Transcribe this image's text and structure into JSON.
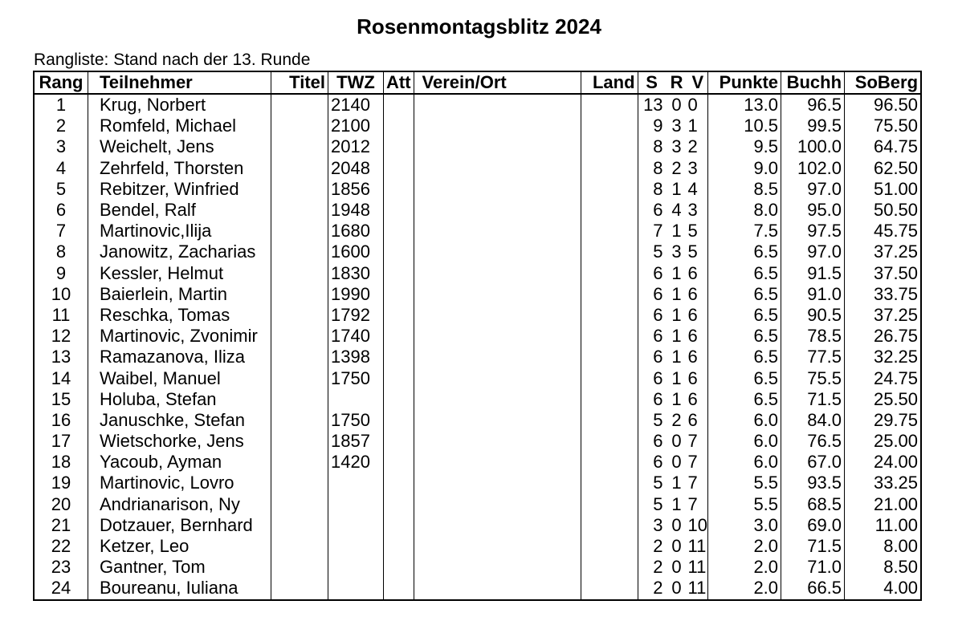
{
  "title": "Rosenmontagsblitz 2024",
  "subtitle": "Rangliste:  Stand nach der 13. Runde",
  "headers": {
    "rang": "Rang",
    "teilnehmer": "Teilnehmer",
    "titel": "Titel",
    "twz": "TWZ",
    "att": "Att",
    "verein": "Verein/Ort",
    "land": "Land",
    "s": "S",
    "r": "R",
    "v": "V",
    "punkte": "Punkte",
    "buchh": "Buchh",
    "soberg": "SoBerg"
  },
  "rows": [
    {
      "rang": "1",
      "name": "Krug, Norbert",
      "titel": "",
      "twz": "2140",
      "att": "",
      "verein": "",
      "land": "",
      "s": "13",
      "r": "0",
      "v": "0",
      "punkte": "13.0",
      "buchh": "96.5",
      "soberg": "96.50"
    },
    {
      "rang": "2",
      "name": "Romfeld, Michael",
      "titel": "",
      "twz": "2100",
      "att": "",
      "verein": "",
      "land": "",
      "s": "9",
      "r": "3",
      "v": "1",
      "punkte": "10.5",
      "buchh": "99.5",
      "soberg": "75.50"
    },
    {
      "rang": "3",
      "name": "Weichelt, Jens",
      "titel": "",
      "twz": "2012",
      "att": "",
      "verein": "",
      "land": "",
      "s": "8",
      "r": "3",
      "v": "2",
      "punkte": "9.5",
      "buchh": "100.0",
      "soberg": "64.75"
    },
    {
      "rang": "4",
      "name": "Zehrfeld, Thorsten",
      "titel": "",
      "twz": "2048",
      "att": "",
      "verein": "",
      "land": "",
      "s": "8",
      "r": "2",
      "v": "3",
      "punkte": "9.0",
      "buchh": "102.0",
      "soberg": "62.50"
    },
    {
      "rang": "5",
      "name": "Rebitzer, Winfried",
      "titel": "",
      "twz": "1856",
      "att": "",
      "verein": "",
      "land": "",
      "s": "8",
      "r": "1",
      "v": "4",
      "punkte": "8.5",
      "buchh": "97.0",
      "soberg": "51.00"
    },
    {
      "rang": "6",
      "name": "Bendel, Ralf",
      "titel": "",
      "twz": "1948",
      "att": "",
      "verein": "",
      "land": "",
      "s": "6",
      "r": "4",
      "v": "3",
      "punkte": "8.0",
      "buchh": "95.0",
      "soberg": "50.50"
    },
    {
      "rang": "7",
      "name": "Martinovic,Ilija",
      "titel": "",
      "twz": "1680",
      "att": "",
      "verein": "",
      "land": "",
      "s": "7",
      "r": "1",
      "v": "5",
      "punkte": "7.5",
      "buchh": "97.5",
      "soberg": "45.75"
    },
    {
      "rang": "8",
      "name": "Janowitz, Zacharias",
      "titel": "",
      "twz": "1600",
      "att": "",
      "verein": "",
      "land": "",
      "s": "5",
      "r": "3",
      "v": "5",
      "punkte": "6.5",
      "buchh": "97.0",
      "soberg": "37.25"
    },
    {
      "rang": "9",
      "name": "Kessler, Helmut",
      "titel": "",
      "twz": "1830",
      "att": "",
      "verein": "",
      "land": "",
      "s": "6",
      "r": "1",
      "v": "6",
      "punkte": "6.5",
      "buchh": "91.5",
      "soberg": "37.50"
    },
    {
      "rang": "10",
      "name": "Baierlein, Martin",
      "titel": "",
      "twz": "1990",
      "att": "",
      "verein": "",
      "land": "",
      "s": "6",
      "r": "1",
      "v": "6",
      "punkte": "6.5",
      "buchh": "91.0",
      "soberg": "33.75"
    },
    {
      "rang": "11",
      "name": "Reschka, Tomas",
      "titel": "",
      "twz": "1792",
      "att": "",
      "verein": "",
      "land": "",
      "s": "6",
      "r": "1",
      "v": "6",
      "punkte": "6.5",
      "buchh": "90.5",
      "soberg": "37.25"
    },
    {
      "rang": "12",
      "name": "Martinovic, Zvonimir",
      "titel": "",
      "twz": "1740",
      "att": "",
      "verein": "",
      "land": "",
      "s": "6",
      "r": "1",
      "v": "6",
      "punkte": "6.5",
      "buchh": "78.5",
      "soberg": "26.75"
    },
    {
      "rang": "13",
      "name": "Ramazanova, Iliza",
      "titel": "",
      "twz": "1398",
      "att": "",
      "verein": "",
      "land": "",
      "s": "6",
      "r": "1",
      "v": "6",
      "punkte": "6.5",
      "buchh": "77.5",
      "soberg": "32.25"
    },
    {
      "rang": "14",
      "name": "Waibel, Manuel",
      "titel": "",
      "twz": "1750",
      "att": "",
      "verein": "",
      "land": "",
      "s": "6",
      "r": "1",
      "v": "6",
      "punkte": "6.5",
      "buchh": "75.5",
      "soberg": "24.75"
    },
    {
      "rang": "15",
      "name": "Holuba, Stefan",
      "titel": "",
      "twz": "",
      "att": "",
      "verein": "",
      "land": "",
      "s": "6",
      "r": "1",
      "v": "6",
      "punkte": "6.5",
      "buchh": "71.5",
      "soberg": "25.50"
    },
    {
      "rang": "16",
      "name": "Januschke, Stefan",
      "titel": "",
      "twz": "1750",
      "att": "",
      "verein": "",
      "land": "",
      "s": "5",
      "r": "2",
      "v": "6",
      "punkte": "6.0",
      "buchh": "84.0",
      "soberg": "29.75"
    },
    {
      "rang": "17",
      "name": "Wietschorke, Jens",
      "titel": "",
      "twz": "1857",
      "att": "",
      "verein": "",
      "land": "",
      "s": "6",
      "r": "0",
      "v": "7",
      "punkte": "6.0",
      "buchh": "76.5",
      "soberg": "25.00"
    },
    {
      "rang": "18",
      "name": "Yacoub, Ayman",
      "titel": "",
      "twz": "1420",
      "att": "",
      "verein": "",
      "land": "",
      "s": "6",
      "r": "0",
      "v": "7",
      "punkte": "6.0",
      "buchh": "67.0",
      "soberg": "24.00"
    },
    {
      "rang": "19",
      "name": "Martinovic, Lovro",
      "titel": "",
      "twz": "",
      "att": "",
      "verein": "",
      "land": "",
      "s": "5",
      "r": "1",
      "v": "7",
      "punkte": "5.5",
      "buchh": "93.5",
      "soberg": "33.25"
    },
    {
      "rang": "20",
      "name": "Andrianarison, Ny",
      "titel": "",
      "twz": "",
      "att": "",
      "verein": "",
      "land": "",
      "s": "5",
      "r": "1",
      "v": "7",
      "punkte": "5.5",
      "buchh": "68.5",
      "soberg": "21.00"
    },
    {
      "rang": "21",
      "name": "Dotzauer, Bernhard",
      "titel": "",
      "twz": "",
      "att": "",
      "verein": "",
      "land": "",
      "s": "3",
      "r": "0",
      "v": "10",
      "punkte": "3.0",
      "buchh": "69.0",
      "soberg": "11.00"
    },
    {
      "rang": "22",
      "name": "Ketzer, Leo",
      "titel": "",
      "twz": "",
      "att": "",
      "verein": "",
      "land": "",
      "s": "2",
      "r": "0",
      "v": "11",
      "punkte": "2.0",
      "buchh": "71.5",
      "soberg": "8.00"
    },
    {
      "rang": "23",
      "name": "Gantner, Tom",
      "titel": "",
      "twz": "",
      "att": "",
      "verein": "",
      "land": "",
      "s": "2",
      "r": "0",
      "v": "11",
      "punkte": "2.0",
      "buchh": "71.0",
      "soberg": "8.50"
    },
    {
      "rang": "24",
      "name": "Boureanu, Iuliana",
      "titel": "",
      "twz": "",
      "att": "",
      "verein": "",
      "land": "",
      "s": "2",
      "r": "0",
      "v": "11",
      "punkte": "2.0",
      "buchh": "66.5",
      "soberg": "4.00"
    }
  ]
}
